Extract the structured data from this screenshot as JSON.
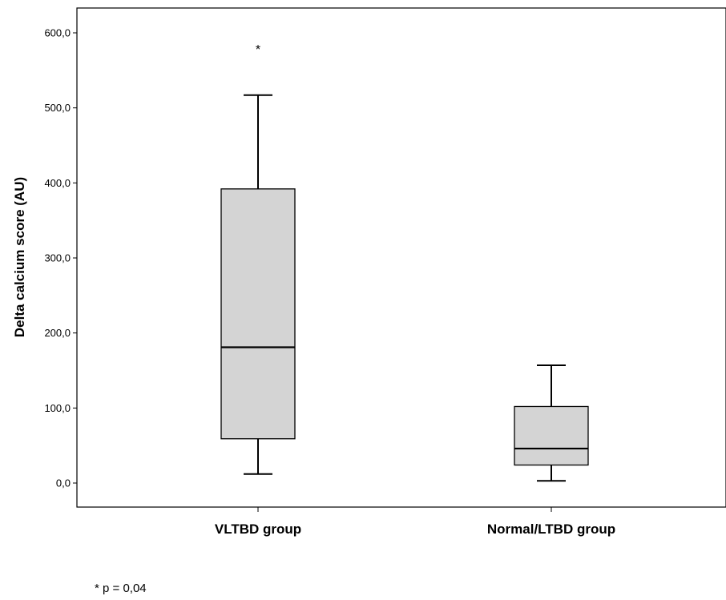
{
  "chart_data": {
    "type": "boxplot",
    "ylabel": "Delta calcium score (AU)",
    "xlabel": "",
    "ylim": [
      -32,
      632
    ],
    "yticks": [
      0,
      100,
      200,
      300,
      400,
      500,
      600
    ],
    "ytick_labels": [
      "0,0",
      "100,0",
      "200,0",
      "300,0",
      "400,0",
      "500,0",
      "600,0"
    ],
    "categories": [
      "VLTBD group",
      "Normal/LTBD group"
    ],
    "boxes": [
      {
        "category": "VLTBD group",
        "whisker_low": 12,
        "q1": 59,
        "median": 181,
        "q3": 392,
        "whisker_high": 517,
        "outliers": [
          583
        ]
      },
      {
        "category": "Normal/LTBD group",
        "whisker_low": 3,
        "q1": 24,
        "median": 46,
        "q3": 102,
        "whisker_high": 157,
        "outliers": []
      }
    ],
    "outlier_marker": "*",
    "box_color": "#d4d4d4",
    "grid": false,
    "footnote": "* p = 0,04"
  }
}
